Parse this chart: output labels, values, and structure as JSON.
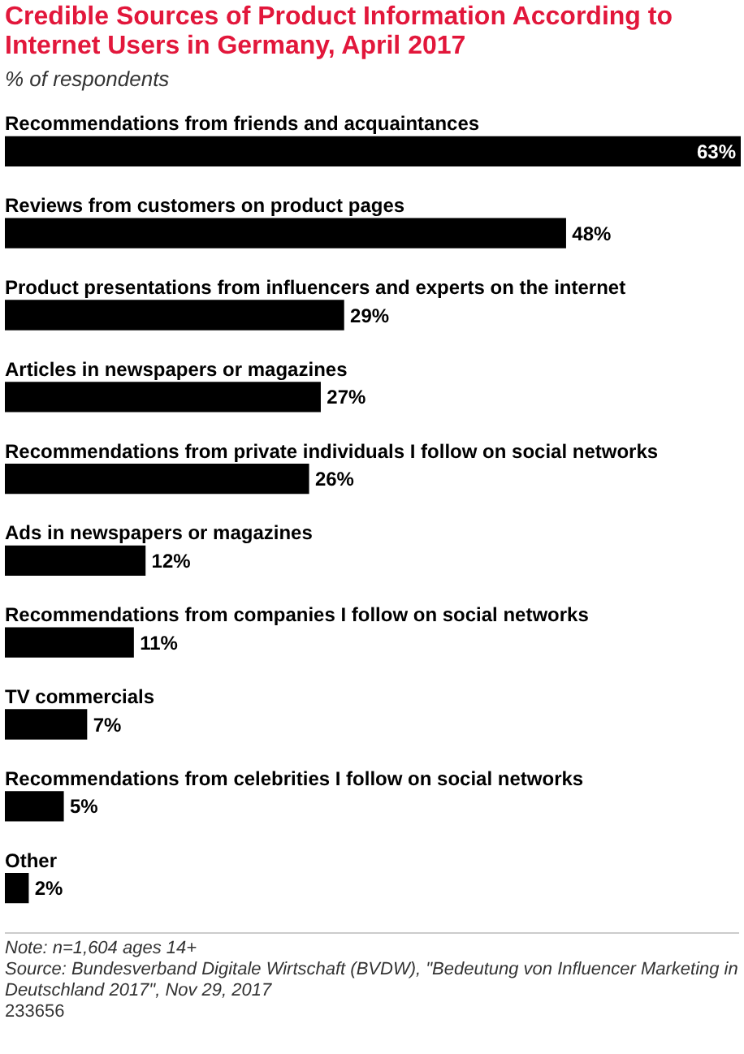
{
  "chart_data": {
    "type": "bar",
    "orientation": "horizontal",
    "title": "Credible Sources of Product Information According to Internet Users in Germany, April 2017",
    "subtitle": "% of respondents",
    "categories": [
      "Recommendations from friends and acquaintances",
      "Reviews from customers on product pages",
      "Product presentations from influencers and experts on the internet",
      "Articles in newspapers or magazines",
      "Recommendations from private individuals I follow on social networks",
      "Ads in newspapers or magazines",
      "Recommendations from companies I follow on social networks",
      "TV commercials",
      "Recommendations from celebrities I follow on social networks",
      "Other"
    ],
    "values": [
      63,
      48,
      29,
      27,
      26,
      12,
      11,
      7,
      5,
      2
    ],
    "value_labels": [
      "63%",
      "48%",
      "29%",
      "27%",
      "26%",
      "12%",
      "11%",
      "7%",
      "5%",
      "2%"
    ],
    "color": "#000000",
    "annotations": [
      "Note: n=1,604 ages 14+",
      "Source: Bundesverband Digitale Wirtschaft (BVDW), \"Bedeutung von Influencer Marketing in Deutschland 2017\", Nov 29, 2017",
      "233656"
    ]
  }
}
